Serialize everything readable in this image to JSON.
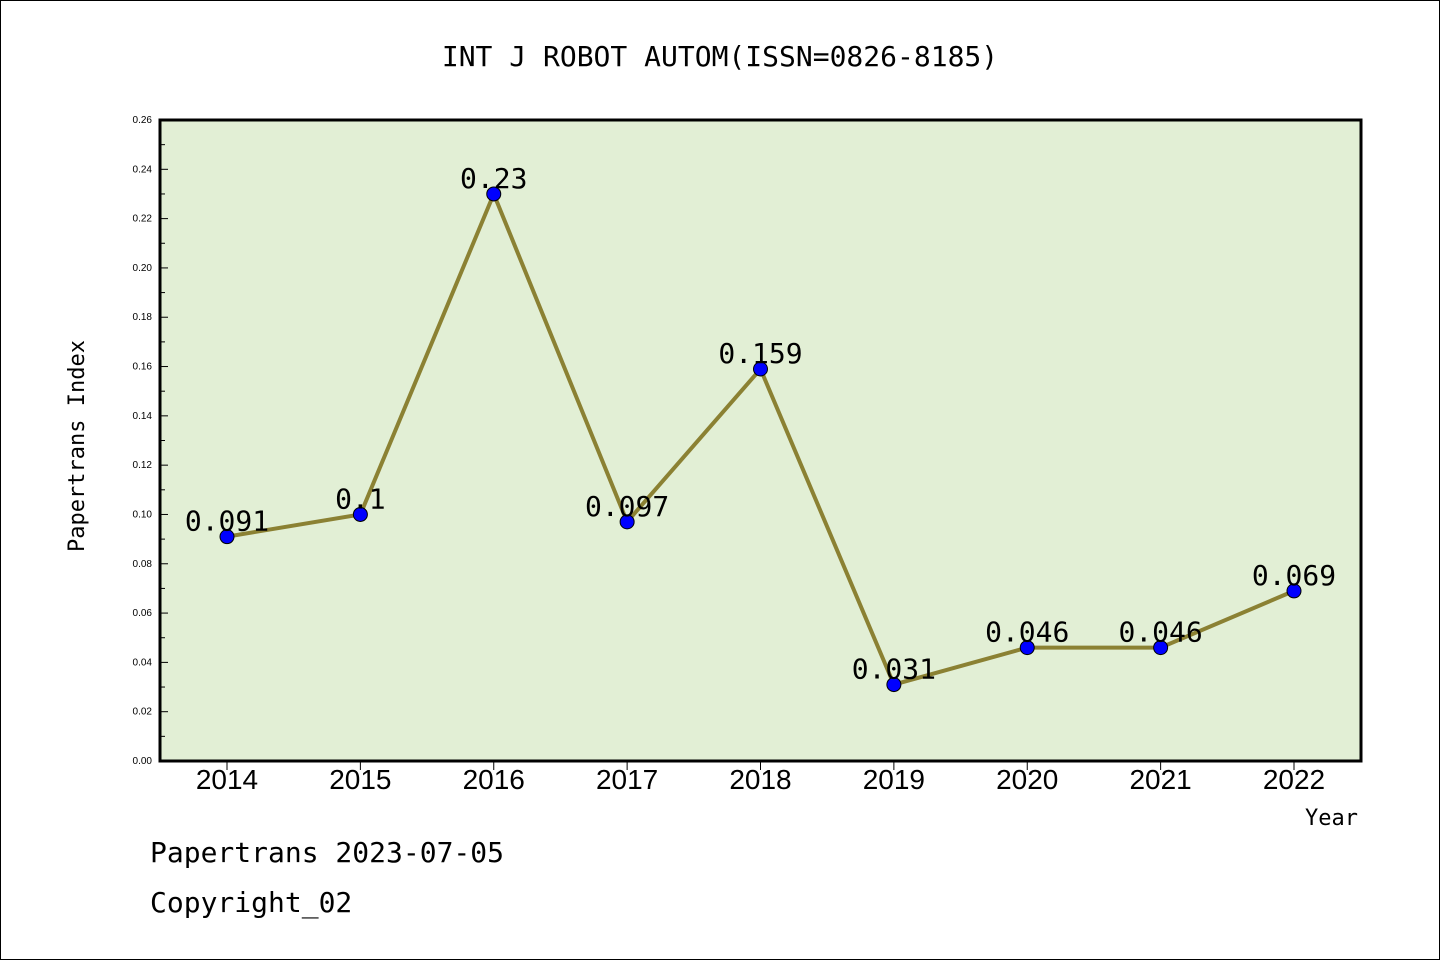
{
  "chart_data": {
    "type": "line",
    "title": "INT J ROBOT AUTOM(ISSN=0826-8185)",
    "xlabel": "Year",
    "ylabel": "Papertrans Index",
    "categories": [
      "2014",
      "2015",
      "2016",
      "2017",
      "2018",
      "2019",
      "2020",
      "2021",
      "2022"
    ],
    "series": [
      {
        "values": [
          0.091,
          0.1,
          0.23,
          0.097,
          0.159,
          0.031,
          0.046,
          0.046,
          0.069
        ]
      }
    ],
    "data_labels": [
      "0.091",
      "0.1",
      "0.23",
      "0.097",
      "0.159",
      "0.031",
      "0.046",
      "0.046",
      "0.069"
    ],
    "ylim": [
      0,
      0.26
    ],
    "yticks": [
      "0.00",
      "0.02",
      "0.04",
      "0.06",
      "0.08",
      "0.10",
      "0.12",
      "0.14",
      "0.16",
      "0.18",
      "0.20",
      "0.22",
      "0.24",
      "0.26"
    ],
    "grid": false,
    "legend": "none",
    "colors": {
      "plot_background": "#e2efd5",
      "line": "#8b8133",
      "marker": "#0000ff"
    }
  },
  "footer": {
    "line1": "Papertrans 2023-07-05",
    "line2": "Copyright_02"
  }
}
